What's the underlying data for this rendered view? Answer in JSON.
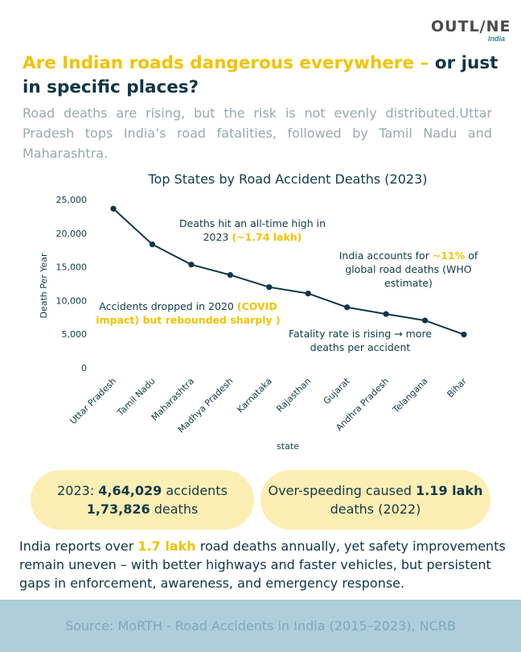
{
  "brand": {
    "name": "OUTL/NE",
    "sub": "India"
  },
  "headline": {
    "part1": "Are Indian roads dangerous everywhere – ",
    "part2": "or just in specific places?"
  },
  "intro": "Road deaths are rising, but the risk is not evenly distributed.Uttar Pradesh tops India’s road fatalities, followed by Tamil Nadu and Maharashtra.",
  "chart_data": {
    "type": "line",
    "title": "Top States by Road Accident Deaths (2023)",
    "xlabel": "state",
    "ylabel": "Death Per Year",
    "ylim": [
      0,
      25000
    ],
    "yticks": [
      "0",
      "5,000",
      "10,000",
      "15,000",
      "20,000",
      "25,000"
    ],
    "ytick_values": [
      0,
      5000,
      10000,
      15000,
      20000,
      25000
    ],
    "grid": false,
    "line_color": "#0f3547",
    "categories": [
      "Uttar Pradesh",
      "Tamil Nadu",
      "Maharashtra",
      "Madhya Pradesh",
      "Karnataka",
      "Rajasthan",
      "Gujarat",
      "Andhra Pradesh",
      "Telangana",
      "Bihar"
    ],
    "values": [
      23650,
      18350,
      15350,
      13800,
      12000,
      11050,
      9000,
      8000,
      7050,
      4950
    ],
    "annotations": [
      {
        "id": "a1",
        "lines": [
          [
            "Deaths hit an all-time high in",
            ""
          ],
          [
            "2023 ",
            "(~1.74 lakh)"
          ]
        ]
      },
      {
        "id": "a2",
        "lines": [
          [
            "India accounts for ",
            "~11%",
            " of"
          ],
          [
            "global road deaths (WHO"
          ],
          [
            "estimate)"
          ]
        ]
      },
      {
        "id": "a3",
        "lines": [
          [
            "Accidents dropped in 2020 ",
            "(COVID"
          ],
          [
            "",
            "impact) but rebounded sharply )"
          ]
        ]
      },
      {
        "id": "a4",
        "lines": [
          [
            "Fatality rate is rising → more"
          ],
          [
            "deaths per accident"
          ]
        ]
      }
    ]
  },
  "stats": {
    "left": {
      "prefix": "2023: ",
      "accidents": "4,64,029",
      "accidents_label": " accidents",
      "deaths": "1,73,826",
      "deaths_label": " deaths"
    },
    "right": {
      "prefix": "Over-speeding caused ",
      "value": "1.19 lakh",
      "suffix": " deaths (2022)"
    }
  },
  "summary": {
    "before": "India reports over ",
    "highlight": "1.7 lakh",
    "after": " road deaths annually, yet safety improvements remain uneven – with better highways and faster vehicles, but persistent gaps in enforcement, awareness, and emergency response."
  },
  "colors": {
    "accent": "#f2c200",
    "dark": "#0f3547",
    "pill": "#fdeeb3",
    "footer": "#aecedb"
  },
  "footer": "Source: MoRTH - Road Accidents in India (2015–2023), NCRB"
}
